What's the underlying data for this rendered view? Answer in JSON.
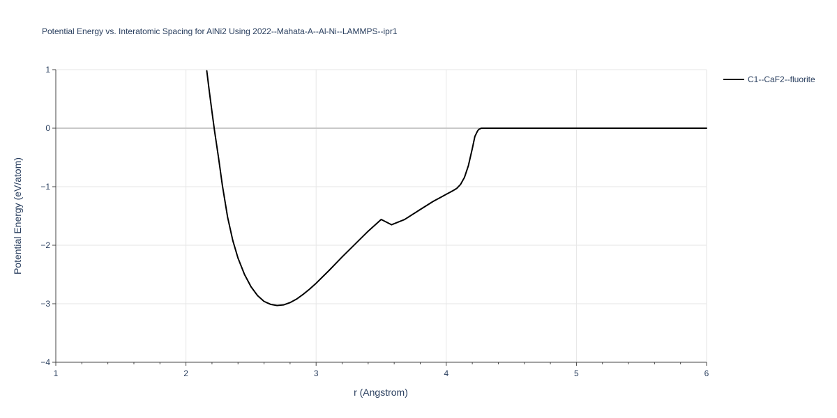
{
  "chart_data": {
    "type": "line",
    "title": "Potential Energy vs. Interatomic Spacing for AlNi2 Using 2022--Mahata-A--Al-Ni--LAMMPS--ipr1",
    "xlabel": "r (Angstrom)",
    "ylabel": "Potential Energy (eV/atom)",
    "xlim": [
      1,
      6
    ],
    "ylim": [
      -4,
      1
    ],
    "x_ticks": [
      1,
      2,
      3,
      4,
      5,
      6
    ],
    "y_ticks": [
      1,
      0,
      -1,
      -2,
      -3,
      -4
    ],
    "x_tick_labels": [
      "1",
      "2",
      "3",
      "4",
      "5",
      "6"
    ],
    "y_tick_labels": [
      "1",
      "0",
      "−1",
      "−2",
      "−3",
      "−4"
    ],
    "grid": true,
    "legend_position": "top-right",
    "series": [
      {
        "name": "C1--CaF2--fluorite",
        "color": "#000000",
        "x": [
          2.16,
          2.18,
          2.2,
          2.22,
          2.25,
          2.28,
          2.32,
          2.36,
          2.4,
          2.45,
          2.5,
          2.55,
          2.6,
          2.65,
          2.7,
          2.75,
          2.8,
          2.85,
          2.9,
          2.95,
          3.0,
          3.1,
          3.2,
          3.3,
          3.4,
          3.5,
          3.58,
          3.68,
          3.8,
          3.9,
          4.0,
          4.05,
          4.08,
          4.11,
          4.14,
          4.17,
          4.2,
          4.22,
          4.24,
          4.25,
          4.27,
          4.3,
          4.5,
          5.0,
          5.5,
          6.0
        ],
        "y": [
          0.98,
          0.62,
          0.28,
          -0.05,
          -0.5,
          -0.98,
          -1.52,
          -1.92,
          -2.22,
          -2.5,
          -2.71,
          -2.86,
          -2.96,
          -3.01,
          -3.03,
          -3.02,
          -2.98,
          -2.92,
          -2.84,
          -2.75,
          -2.65,
          -2.43,
          -2.2,
          -1.98,
          -1.76,
          -1.56,
          -1.65,
          -1.56,
          -1.39,
          -1.25,
          -1.13,
          -1.07,
          -1.03,
          -0.96,
          -0.84,
          -0.64,
          -0.35,
          -0.14,
          -0.05,
          -0.02,
          0.0,
          0.0,
          0.0,
          0.0,
          0.0,
          0.0
        ]
      }
    ]
  }
}
